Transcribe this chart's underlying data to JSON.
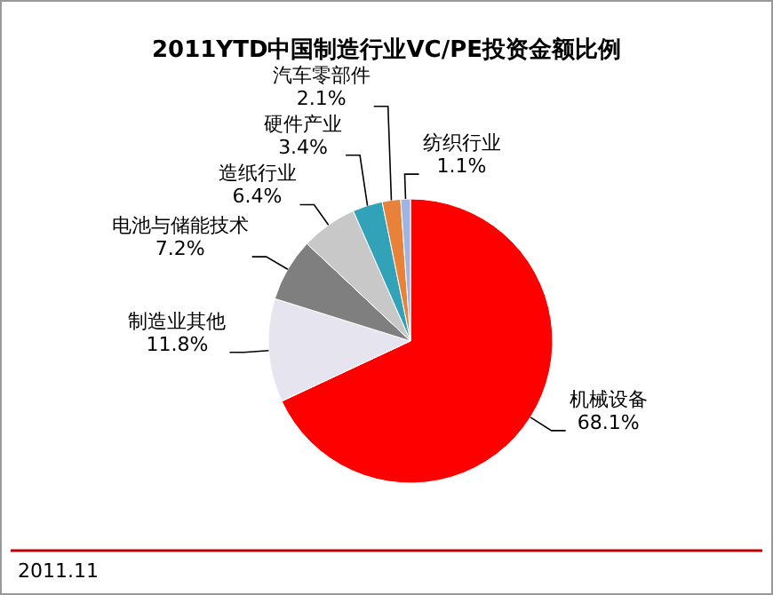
{
  "chart_data": {
    "type": "pie",
    "title": "2011YTD中国制造行业VC/PE投资金额比例",
    "categories": [
      "机械设备",
      "制造业其他",
      "电池与储能技术",
      "造纸行业",
      "硬件产业",
      "汽车零部件",
      "纺织行业"
    ],
    "values": [
      68.1,
      11.8,
      7.2,
      6.4,
      3.4,
      2.1,
      1.1
    ],
    "colors": [
      "#ff0000",
      "#e6e4ee",
      "#7f7f7f",
      "#c8c8c8",
      "#31a2b8",
      "#e8823a",
      "#9fb4e0"
    ],
    "value_labels": [
      "68.1%",
      "11.8%",
      "7.2%",
      "6.4%",
      "3.4%",
      "2.1%",
      "1.1%"
    ],
    "annotations": [
      "2011.11"
    ]
  }
}
